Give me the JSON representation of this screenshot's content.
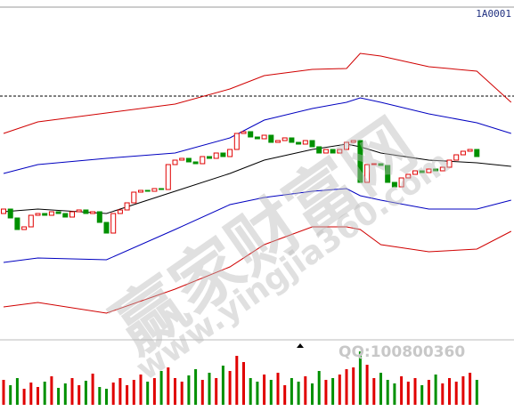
{
  "chart_data": {
    "type": "candlestick",
    "symbol": "1A0001",
    "watermark": "赢家财富网",
    "watermark_url": "www.yingjia360.com",
    "contact": "QQ:100800360",
    "xlim": [
      0,
      74
    ],
    "ylim": [
      0,
      380
    ],
    "reference_line": 272,
    "open": [
      140,
      145,
      135,
      122,
      125,
      138,
      140,
      138,
      142,
      140,
      136,
      142,
      144,
      140,
      142,
      130,
      118,
      140,
      144,
      152,
      164,
      166,
      165,
      168,
      167,
      195,
      200,
      202,
      198,
      196,
      204,
      202,
      208,
      204,
      212,
      230,
      232,
      226,
      224,
      228,
      220,
      222,
      225,
      220,
      218,
      222,
      215,
      208,
      212,
      208,
      212,
      220,
      222,
      175,
      195,
      196,
      194,
      175,
      170,
      180,
      184,
      188,
      186,
      190,
      188,
      192,
      200,
      206,
      210,
      212
    ],
    "close": [
      145,
      135,
      122,
      125,
      138,
      140,
      138,
      142,
      140,
      136,
      142,
      144,
      140,
      142,
      130,
      118,
      140,
      144,
      152,
      164,
      166,
      165,
      168,
      167,
      195,
      200,
      202,
      198,
      196,
      204,
      202,
      208,
      204,
      212,
      230,
      232,
      226,
      224,
      228,
      220,
      222,
      225,
      220,
      218,
      222,
      215,
      208,
      212,
      208,
      212,
      220,
      222,
      175,
      195,
      196,
      194,
      175,
      170,
      180,
      184,
      188,
      186,
      190,
      188,
      192,
      200,
      206,
      210,
      212,
      204
    ],
    "up_color": "#e00000",
    "down_color": "#009000",
    "bands": [
      {
        "color": "#d00000",
        "x": [
          0,
          5,
          15,
          25,
          33,
          38,
          45,
          50,
          52,
          55,
          62,
          69,
          74
        ],
        "values": [
          230,
          243,
          253,
          263,
          280,
          295,
          302,
          303,
          320,
          317,
          305,
          300,
          265
        ]
      },
      {
        "color": "#0000c0",
        "x": [
          0,
          5,
          15,
          25,
          33,
          38,
          45,
          50,
          52,
          55,
          62,
          69,
          74
        ],
        "values": [
          185,
          195,
          202,
          208,
          225,
          245,
          258,
          265,
          270,
          265,
          252,
          242,
          230
        ]
      },
      {
        "color": "#000000",
        "x": [
          0,
          5,
          15,
          25,
          33,
          38,
          45,
          50,
          52,
          55,
          62,
          69,
          74
        ],
        "values": [
          142,
          145,
          140,
          165,
          185,
          200,
          212,
          218,
          215,
          208,
          200,
          197,
          193
        ]
      },
      {
        "color": "#0000c0",
        "x": [
          0,
          5,
          15,
          25,
          33,
          38,
          45,
          50,
          52,
          55,
          62,
          69,
          74
        ],
        "values": [
          85,
          90,
          88,
          122,
          150,
          158,
          165,
          168,
          160,
          155,
          145,
          145,
          155
        ]
      },
      {
        "color": "#d00000",
        "x": [
          0,
          5,
          15,
          25,
          33,
          38,
          45,
          50,
          52,
          55,
          62,
          69,
          74
        ],
        "values": [
          35,
          40,
          28,
          55,
          80,
          105,
          125,
          125,
          122,
          105,
          97,
          100,
          120
        ]
      }
    ],
    "volume_ylim": [
      0,
      70
    ],
    "volume": [
      28,
      22,
      30,
      18,
      25,
      20,
      26,
      32,
      19,
      24,
      30,
      22,
      27,
      35,
      20,
      18,
      25,
      30,
      22,
      28,
      34,
      26,
      30,
      38,
      42,
      30,
      26,
      33,
      40,
      28,
      36,
      30,
      44,
      38,
      55,
      48,
      30,
      26,
      34,
      28,
      36,
      22,
      30,
      26,
      32,
      24,
      38,
      28,
      30,
      34,
      40,
      42,
      60,
      45,
      30,
      36,
      28,
      24,
      32,
      26,
      30,
      22,
      28,
      34,
      24,
      30,
      26,
      32,
      36,
      28
    ]
  }
}
